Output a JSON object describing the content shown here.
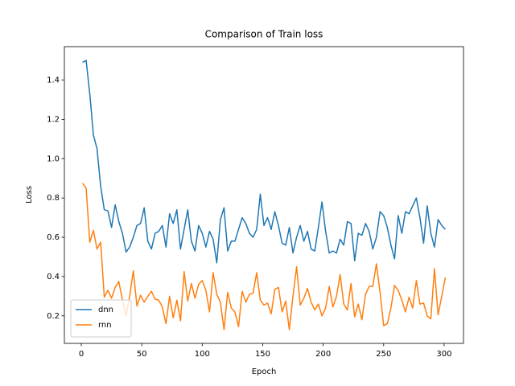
{
  "chart_data": {
    "type": "line",
    "title": "Comparison of Train loss",
    "x_label": "Epoch",
    "y_label": "Loss",
    "x": [
      1,
      4,
      7,
      10,
      13,
      16,
      19,
      22,
      25,
      28,
      31,
      34,
      37,
      40,
      43,
      46,
      49,
      52,
      55,
      58,
      61,
      64,
      67,
      70,
      73,
      76,
      79,
      82,
      85,
      88,
      91,
      94,
      97,
      100,
      103,
      106,
      109,
      112,
      115,
      118,
      121,
      124,
      127,
      130,
      133,
      136,
      139,
      142,
      145,
      148,
      151,
      154,
      157,
      160,
      163,
      166,
      169,
      172,
      175,
      178,
      181,
      184,
      187,
      190,
      193,
      196,
      199,
      202,
      205,
      208,
      211,
      214,
      217,
      220,
      223,
      226,
      229,
      232,
      235,
      238,
      241,
      244,
      247,
      250,
      253,
      256,
      259,
      262,
      265,
      268,
      271,
      274,
      277,
      280,
      283,
      286,
      289,
      292,
      295,
      298,
      301
    ],
    "series": [
      {
        "name": "dnn",
        "color": "#1f77b4",
        "values": [
          1.49,
          1.5,
          1.33,
          1.12,
          1.05,
          0.86,
          0.74,
          0.735,
          0.65,
          0.765,
          0.68,
          0.62,
          0.525,
          0.55,
          0.6,
          0.66,
          0.67,
          0.75,
          0.58,
          0.54,
          0.62,
          0.63,
          0.66,
          0.55,
          0.72,
          0.67,
          0.74,
          0.54,
          0.64,
          0.74,
          0.58,
          0.53,
          0.66,
          0.62,
          0.55,
          0.63,
          0.59,
          0.47,
          0.69,
          0.75,
          0.53,
          0.58,
          0.58,
          0.64,
          0.7,
          0.67,
          0.62,
          0.6,
          0.64,
          0.82,
          0.66,
          0.7,
          0.64,
          0.73,
          0.66,
          0.57,
          0.56,
          0.65,
          0.52,
          0.6,
          0.66,
          0.58,
          0.63,
          0.54,
          0.53,
          0.65,
          0.78,
          0.63,
          0.52,
          0.53,
          0.52,
          0.59,
          0.56,
          0.68,
          0.67,
          0.48,
          0.62,
          0.61,
          0.67,
          0.63,
          0.54,
          0.6,
          0.73,
          0.71,
          0.65,
          0.56,
          0.49,
          0.71,
          0.62,
          0.73,
          0.72,
          0.76,
          0.8,
          0.7,
          0.57,
          0.76,
          0.62,
          0.55,
          0.69,
          0.66,
          0.64
        ]
      },
      {
        "name": "rnn",
        "color": "#ff7f0e",
        "values": [
          0.875,
          0.85,
          0.575,
          0.635,
          0.54,
          0.575,
          0.295,
          0.33,
          0.29,
          0.345,
          0.375,
          0.28,
          0.2,
          0.3,
          0.43,
          0.25,
          0.305,
          0.27,
          0.3,
          0.325,
          0.285,
          0.28,
          0.245,
          0.16,
          0.3,
          0.19,
          0.28,
          0.175,
          0.425,
          0.275,
          0.365,
          0.29,
          0.36,
          0.38,
          0.33,
          0.22,
          0.42,
          0.31,
          0.27,
          0.13,
          0.32,
          0.24,
          0.22,
          0.145,
          0.325,
          0.27,
          0.31,
          0.315,
          0.42,
          0.28,
          0.255,
          0.265,
          0.21,
          0.335,
          0.345,
          0.22,
          0.275,
          0.13,
          0.3,
          0.45,
          0.255,
          0.29,
          0.34,
          0.27,
          0.23,
          0.26,
          0.2,
          0.24,
          0.35,
          0.245,
          0.3,
          0.41,
          0.26,
          0.23,
          0.365,
          0.195,
          0.26,
          0.18,
          0.31,
          0.35,
          0.35,
          0.465,
          0.32,
          0.15,
          0.16,
          0.24,
          0.355,
          0.33,
          0.28,
          0.22,
          0.295,
          0.24,
          0.38,
          0.26,
          0.265,
          0.2,
          0.185,
          0.44,
          0.205,
          0.3,
          0.395
        ]
      }
    ],
    "xlim": [
      -14,
      316
    ],
    "ylim": [
      0.06,
      1.57
    ],
    "xticks": [
      0,
      50,
      100,
      150,
      200,
      250,
      300
    ],
    "yticks": [
      0.2,
      0.4,
      0.6,
      0.8,
      {
        "value": 1,
        "label": "1.0"
      },
      1.2,
      1.4
    ],
    "grid": false,
    "legend": "lower left"
  }
}
